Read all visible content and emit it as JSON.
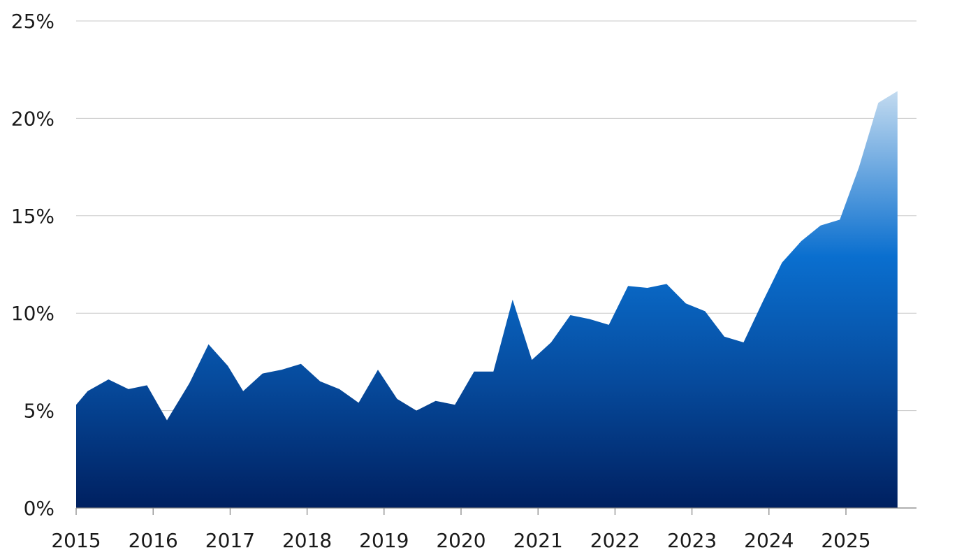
{
  "chart_data": {
    "type": "area",
    "title": "",
    "xlabel": "",
    "ylabel": "",
    "x_ticks": [
      "2015",
      "2016",
      "2017",
      "2018",
      "2019",
      "2020",
      "2021",
      "2022",
      "2023",
      "2024",
      "2025"
    ],
    "y_ticks": [
      "0%",
      "5%",
      "10%",
      "15%",
      "20%",
      "25%"
    ],
    "xlim": [
      2015.0,
      2025.9
    ],
    "ylim": [
      0,
      25
    ],
    "grid": true,
    "legend": "none",
    "colors": {
      "top": "#c5dcf0",
      "mid": "#0a6fcf",
      "bottom": "#002060"
    },
    "series": [
      {
        "x": [
          2015.0,
          2015.15,
          2015.42,
          2015.68,
          2015.92,
          2016.18,
          2016.47,
          2016.72,
          2016.97,
          2017.17,
          2017.42,
          2017.67,
          2017.92,
          2018.17,
          2018.42,
          2018.67,
          2018.92,
          2019.17,
          2019.42,
          2019.67,
          2019.92,
          2020.17,
          2020.42,
          2020.67,
          2020.92,
          2021.17,
          2021.42,
          2021.67,
          2021.92,
          2022.17,
          2022.42,
          2022.67,
          2022.92,
          2023.17,
          2023.42,
          2023.67,
          2023.92,
          2024.17,
          2024.42,
          2024.67,
          2024.92,
          2025.17,
          2025.42,
          2025.67
        ],
        "values": [
          5.3,
          6.0,
          6.6,
          6.1,
          6.3,
          4.5,
          6.4,
          8.4,
          7.3,
          6.0,
          6.9,
          7.1,
          7.4,
          6.5,
          6.1,
          5.4,
          7.1,
          5.6,
          5.0,
          5.5,
          5.3,
          7.0,
          7.0,
          10.7,
          7.6,
          8.5,
          9.9,
          9.7,
          9.4,
          11.4,
          11.3,
          11.5,
          10.5,
          10.1,
          8.8,
          8.5,
          10.6,
          12.6,
          13.7,
          14.5,
          14.8,
          17.5,
          20.8,
          21.4
        ]
      }
    ]
  }
}
